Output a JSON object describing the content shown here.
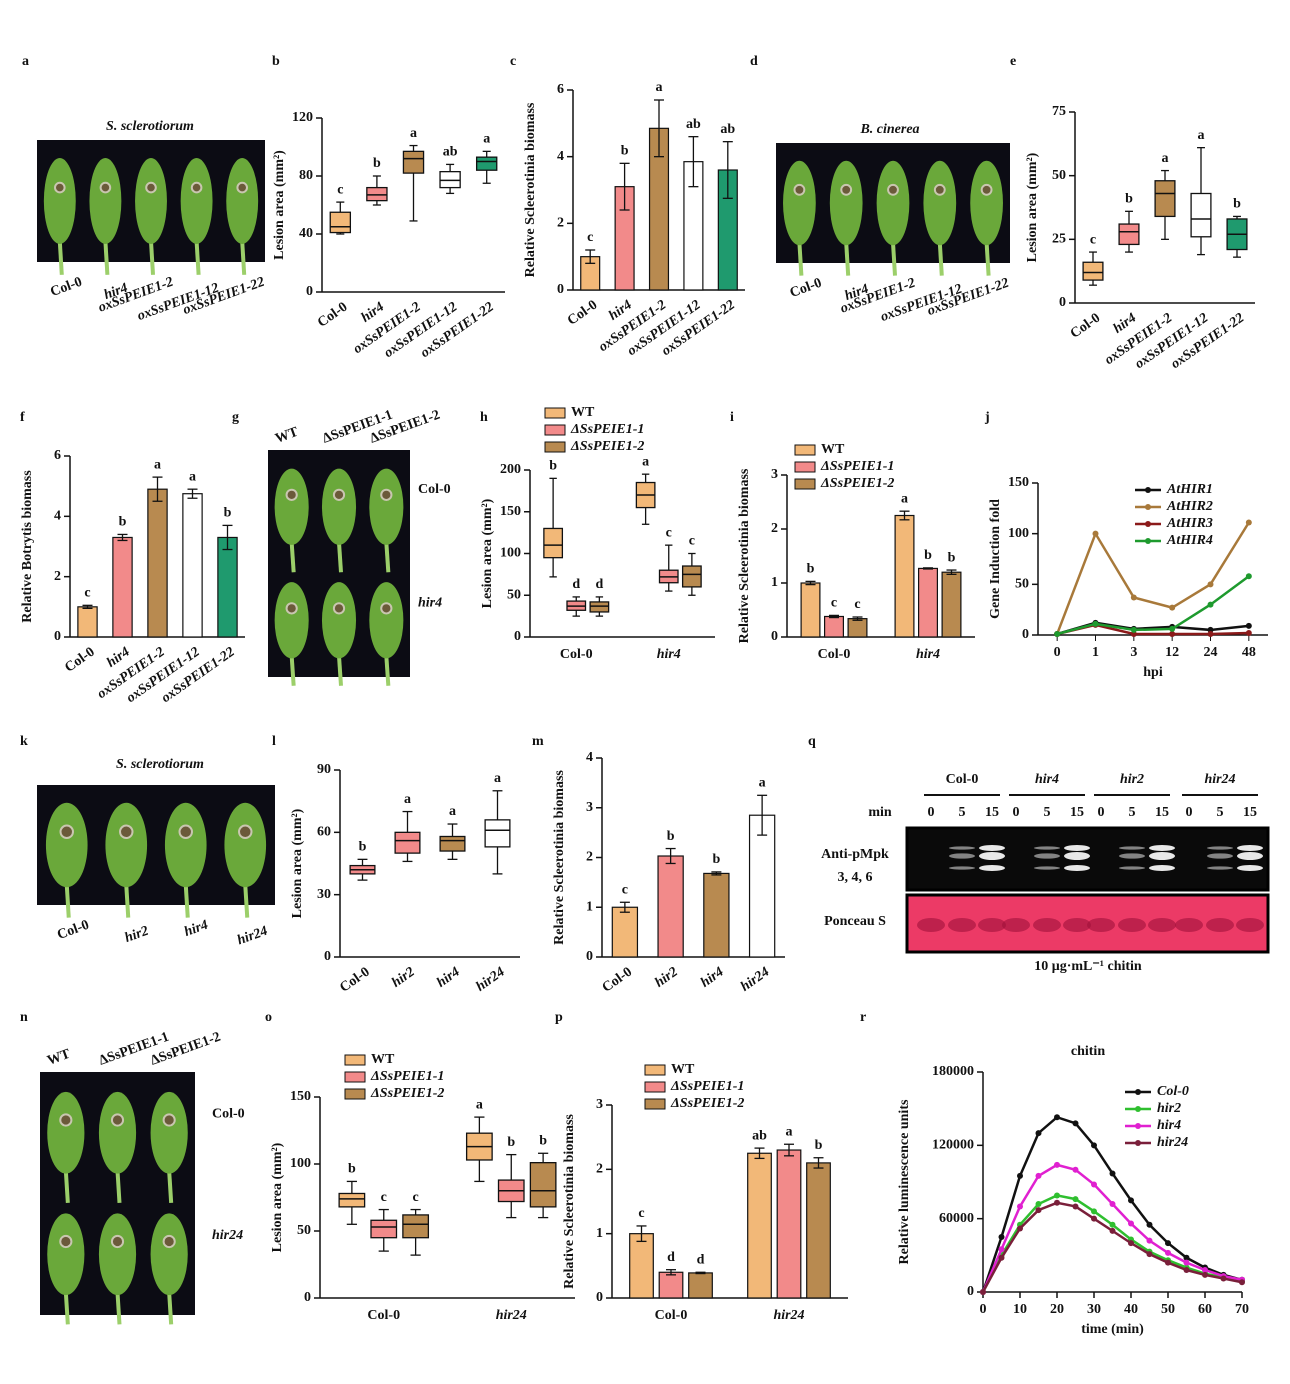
{
  "chart_data": [
    {
      "type": "image",
      "panel": "a",
      "title": "S. sclerotiorum",
      "labels": [
        "Col-0",
        "hir4",
        "oxSsPEIE1-2",
        "oxSsPEIE1-12",
        "oxSsPEIE1-22"
      ]
    },
    {
      "type": "box",
      "panel": "b",
      "ylabel": "Lesion area (mm²)",
      "categories": [
        "Col-0",
        "hir4",
        "oxSsPEIE1-2",
        "oxSsPEIE1-12",
        "oxSsPEIE1-22"
      ],
      "colors": [
        "#f2b878",
        "#f28a8a",
        "#b88a50",
        "#ffffff",
        "#1f9a6e"
      ],
      "stats": [
        [
          40,
          41,
          45,
          55,
          62
        ],
        [
          60,
          63,
          67,
          72,
          80
        ],
        [
          49,
          82,
          92,
          97,
          101
        ],
        [
          68,
          72,
          77,
          83,
          88
        ],
        [
          75,
          84,
          90,
          93,
          97
        ]
      ],
      "letters": [
        "c",
        "b",
        "a",
        "ab",
        "a"
      ],
      "ylim": [
        0,
        120
      ],
      "yticks": [
        0,
        40,
        80,
        120
      ]
    },
    {
      "type": "bar",
      "panel": "c",
      "ylabel": "Relative Scleerotinia biomass",
      "categories": [
        "Col-0",
        "hir4",
        "oxSsPEIE1-2",
        "oxSsPEIE1-12",
        "oxSsPEIE1-22"
      ],
      "colors": [
        "#f2b878",
        "#f28a8a",
        "#b88a50",
        "#ffffff",
        "#1f9a6e"
      ],
      "values": [
        1.0,
        3.1,
        4.85,
        3.85,
        3.6
      ],
      "errors": [
        0.2,
        0.7,
        0.85,
        0.75,
        0.85
      ],
      "letters": [
        "c",
        "b",
        "a",
        "ab",
        "ab"
      ],
      "ylim": [
        0,
        6
      ],
      "yticks": [
        0,
        2,
        4,
        6
      ]
    },
    {
      "type": "image",
      "panel": "d",
      "title": "B. cinerea",
      "labels": [
        "Col-0",
        "hir4",
        "oxSsPEIE1-2",
        "oxSsPEIE1-12",
        "oxSsPEIE1-22"
      ]
    },
    {
      "type": "box",
      "panel": "e",
      "ylabel": "Lesion area (mm²)",
      "categories": [
        "Col-0",
        "hir4",
        "oxSsPEIE1-2",
        "oxSsPEIE1-12",
        "oxSsPEIE1-22"
      ],
      "colors": [
        "#f2b878",
        "#f28a8a",
        "#b88a50",
        "#ffffff",
        "#1f9a6e"
      ],
      "stats": [
        [
          7,
          9,
          12,
          16,
          20
        ],
        [
          20,
          23,
          28,
          31,
          36
        ],
        [
          25,
          34,
          43,
          48,
          52
        ],
        [
          19,
          26,
          33,
          43,
          61
        ],
        [
          18,
          21,
          27,
          33,
          34
        ]
      ],
      "letters": [
        "c",
        "b",
        "a",
        "a",
        "b"
      ],
      "ylim": [
        0,
        75
      ],
      "yticks": [
        0,
        25,
        50,
        75
      ]
    },
    {
      "type": "bar",
      "panel": "f",
      "ylabel": "Relative Botrytis biomass",
      "categories": [
        "Col-0",
        "hir4",
        "oxSsPEIE1-2",
        "oxSsPEIE1-12",
        "oxSsPEIE1-22"
      ],
      "colors": [
        "#f2b878",
        "#f28a8a",
        "#b88a50",
        "#ffffff",
        "#1f9a6e"
      ],
      "values": [
        1.0,
        3.3,
        4.9,
        4.75,
        3.3
      ],
      "errors": [
        0.05,
        0.1,
        0.4,
        0.15,
        0.4
      ],
      "letters": [
        "c",
        "b",
        "a",
        "a",
        "b"
      ],
      "ylim": [
        0,
        6
      ],
      "yticks": [
        0,
        2,
        4,
        6
      ]
    },
    {
      "type": "image",
      "panel": "g",
      "columns": [
        "WT",
        "ΔSsPEIE1-1",
        "ΔSsPEIE1-2"
      ],
      "rows": [
        "Col-0",
        "hir4"
      ]
    },
    {
      "type": "box",
      "panel": "h",
      "ylabel": "Lesion area (mm²)",
      "categories": [
        "Col-0",
        "hir4"
      ],
      "series": [
        {
          "name": "WT",
          "color": "#f2b878",
          "stats": [
            [
              72,
              95,
              110,
              130,
              190
            ],
            [
              135,
              155,
              170,
              185,
              195
            ]
          ],
          "letters": [
            "b",
            "a"
          ]
        },
        {
          "name": "ΔSsPEIE1-1",
          "color": "#f28a8a",
          "stats": [
            [
              25,
              32,
              37,
              43,
              48
            ],
            [
              55,
              65,
              72,
              80,
              110
            ]
          ],
          "letters": [
            "d",
            "c"
          ]
        },
        {
          "name": "ΔSsPEIE1-2",
          "color": "#b88a50",
          "stats": [
            [
              25,
              30,
              37,
              42,
              48
            ],
            [
              50,
              60,
              75,
              85,
              100
            ]
          ],
          "letters": [
            "d",
            "c"
          ]
        }
      ],
      "ylim": [
        0,
        200
      ],
      "yticks": [
        0,
        50,
        100,
        150,
        200
      ]
    },
    {
      "type": "bar",
      "panel": "i",
      "ylabel": "Relative Scleerotinia biomass",
      "categories": [
        "Col-0",
        "hir4"
      ],
      "series": [
        {
          "name": "WT",
          "color": "#f2b878",
          "values": [
            1.0,
            2.25
          ],
          "errors": [
            0.03,
            0.08
          ],
          "letters": [
            "b",
            "a"
          ]
        },
        {
          "name": "ΔSsPEIE1-1",
          "color": "#f28a8a",
          "values": [
            0.38,
            1.27
          ],
          "errors": [
            0.02,
            0.01
          ],
          "letters": [
            "c",
            "b"
          ]
        },
        {
          "name": "ΔSsPEIE1-2",
          "color": "#b88a50",
          "values": [
            0.34,
            1.2
          ],
          "errors": [
            0.03,
            0.04
          ],
          "letters": [
            "c",
            "b"
          ]
        }
      ],
      "ylim": [
        0,
        3
      ],
      "yticks": [
        0,
        1,
        2,
        3
      ]
    },
    {
      "type": "line",
      "panel": "j",
      "ylabel": "Gene Induction fold",
      "xlabel": "hpi",
      "categories": [
        "0",
        "1",
        "3",
        "12",
        "24",
        "48"
      ],
      "series": [
        {
          "name": "AtHIR1",
          "color": "#111111",
          "values": [
            1,
            12,
            6,
            8,
            5,
            9
          ]
        },
        {
          "name": "AtHIR2",
          "color": "#a8793a",
          "values": [
            1,
            100,
            37,
            27,
            50,
            111
          ]
        },
        {
          "name": "AtHIR3",
          "color": "#8b1a1a",
          "values": [
            1,
            10,
            1,
            1,
            1,
            2
          ]
        },
        {
          "name": "AtHIR4",
          "color": "#1e9a2e",
          "values": [
            1,
            11,
            5,
            6,
            30,
            58
          ]
        }
      ],
      "ylim": [
        0,
        150
      ],
      "yticks": [
        0,
        50,
        100,
        150
      ]
    },
    {
      "type": "image",
      "panel": "k",
      "title": "S. sclerotiorum",
      "labels": [
        "Col-0",
        "hir2",
        "hir4",
        "hir24"
      ]
    },
    {
      "type": "box",
      "panel": "l",
      "ylabel": "Lesion area (mm²)",
      "categories": [
        "Col-0",
        "hir2",
        "hir4",
        "hir24"
      ],
      "colors": [
        "#f28a8a",
        "#f28a8a",
        "#b88a50",
        "#ffffff"
      ],
      "stats": [
        [
          37,
          40,
          42,
          44,
          47
        ],
        [
          46,
          50,
          56,
          60,
          70
        ],
        [
          47,
          51,
          56,
          58,
          64
        ],
        [
          40,
          53,
          61,
          66,
          80
        ]
      ],
      "letters": [
        "b",
        "a",
        "a",
        "a"
      ],
      "ylim": [
        0,
        90
      ],
      "yticks": [
        0,
        30,
        60,
        90
      ]
    },
    {
      "type": "bar",
      "panel": "m",
      "ylabel": "Relative Scleerotinia biomass",
      "categories": [
        "Col-0",
        "hir2",
        "hir4",
        "hir24"
      ],
      "colors": [
        "#f2b878",
        "#f28a8a",
        "#b88a50",
        "#ffffff"
      ],
      "values": [
        1.0,
        2.03,
        1.68,
        2.85
      ],
      "errors": [
        0.1,
        0.15,
        0.03,
        0.4
      ],
      "letters": [
        "c",
        "b",
        "b",
        "a"
      ],
      "ylim": [
        0,
        4
      ],
      "yticks": [
        0,
        1,
        2,
        3,
        4
      ]
    },
    {
      "type": "blot",
      "panel": "q",
      "groups": [
        "Col-0",
        "hir4",
        "hir2",
        "hir24"
      ],
      "time_label": "min",
      "times": [
        0,
        5,
        15
      ],
      "blot_label": [
        "Anti-pMpk",
        "3, 4, 6"
      ],
      "stain_label": "Ponceau S",
      "caption": "10 μg·mL⁻¹ chitin"
    },
    {
      "type": "image",
      "panel": "n",
      "columns": [
        "WT",
        "ΔSsPEIE1-1",
        "ΔSsPEIE1-2"
      ],
      "rows": [
        "Col-0",
        "hir24"
      ]
    },
    {
      "type": "box",
      "panel": "o",
      "ylabel": "Lesion area (mm²)",
      "categories": [
        "Col-0",
        "hir24"
      ],
      "series": [
        {
          "name": "WT",
          "color": "#f2b878",
          "stats": [
            [
              55,
              68,
              74,
              78,
              87
            ],
            [
              87,
              103,
              113,
              123,
              135
            ]
          ],
          "letters": [
            "b",
            "a"
          ]
        },
        {
          "name": "ΔSsPEIE1-1",
          "color": "#f28a8a",
          "stats": [
            [
              35,
              45,
              53,
              58,
              66
            ],
            [
              60,
              72,
              80,
              88,
              107
            ]
          ],
          "letters": [
            "c",
            "b"
          ]
        },
        {
          "name": "ΔSsPEIE1-2",
          "color": "#b88a50",
          "stats": [
            [
              32,
              45,
              55,
              62,
              66
            ],
            [
              60,
              68,
              80,
              101,
              108
            ]
          ],
          "letters": [
            "c",
            "b"
          ]
        }
      ],
      "ylim": [
        0,
        150
      ],
      "yticks": [
        0,
        50,
        100,
        150
      ]
    },
    {
      "type": "bar",
      "panel": "p",
      "ylabel": "Relative Scleerotinia biomass",
      "categories": [
        "Col-0",
        "hir24"
      ],
      "series": [
        {
          "name": "WT",
          "color": "#f2b878",
          "values": [
            1.0,
            2.25
          ],
          "errors": [
            0.12,
            0.08
          ],
          "letters": [
            "c",
            "ab"
          ]
        },
        {
          "name": "ΔSsPEIE1-1",
          "color": "#f28a8a",
          "values": [
            0.4,
            2.3
          ],
          "errors": [
            0.04,
            0.09
          ],
          "letters": [
            "d",
            "a"
          ]
        },
        {
          "name": "ΔSsPEIE1-2",
          "color": "#b88a50",
          "values": [
            0.39,
            2.1
          ],
          "errors": [
            0.01,
            0.08
          ],
          "letters": [
            "d",
            "b"
          ]
        }
      ],
      "ylim": [
        0,
        3
      ],
      "yticks": [
        0,
        1,
        2,
        3
      ]
    },
    {
      "type": "line",
      "panel": "r",
      "title": "chitin",
      "ylabel": "Relative luminescence units",
      "xlabel": "time (min)",
      "x": [
        0,
        5,
        10,
        15,
        20,
        25,
        30,
        35,
        40,
        45,
        50,
        55,
        60,
        65,
        70
      ],
      "xlim": [
        0,
        70
      ],
      "xticks": [
        0,
        10,
        20,
        30,
        40,
        50,
        60,
        70
      ],
      "series": [
        {
          "name": "Col-0",
          "color": "#111111",
          "values": [
            0,
            45000,
            95000,
            130000,
            143000,
            138000,
            120000,
            97000,
            75000,
            55000,
            40000,
            28000,
            20000,
            14000,
            10000
          ]
        },
        {
          "name": "hir2",
          "color": "#2fbf2f",
          "values": [
            0,
            30000,
            55000,
            72000,
            79000,
            76000,
            66000,
            55000,
            43000,
            33000,
            26000,
            20000,
            15000,
            12000,
            9000
          ]
        },
        {
          "name": "hir4",
          "color": "#e020d0",
          "values": [
            0,
            35000,
            70000,
            95000,
            104000,
            100000,
            88000,
            72000,
            56000,
            42000,
            32000,
            24000,
            18000,
            13000,
            10000
          ]
        },
        {
          "name": "hir24",
          "color": "#7a1f3a",
          "values": [
            0,
            28000,
            52000,
            67000,
            73000,
            70000,
            60000,
            50000,
            40000,
            31000,
            24000,
            18000,
            14000,
            11000,
            8000
          ]
        }
      ],
      "ylim": [
        0,
        180000
      ],
      "yticks": [
        0,
        60000,
        120000,
        180000
      ]
    }
  ]
}
